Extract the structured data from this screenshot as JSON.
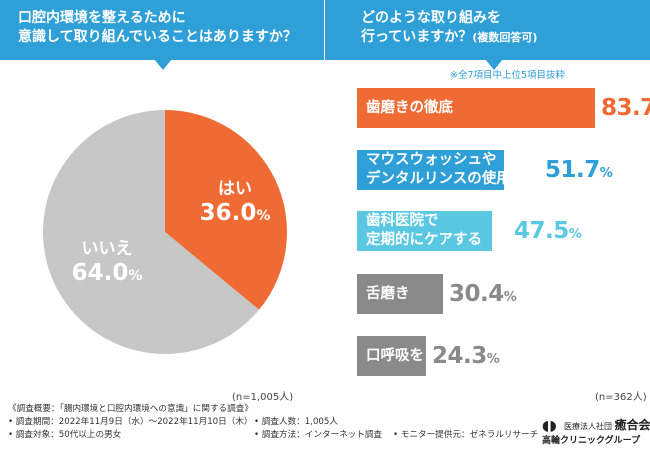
{
  "left_panel": {
    "question_line1": "口腔内環境を整えるために",
    "question_line2": "意識して取り組んでいることはありますか？",
    "n_label": "(n=1,005人)"
  },
  "right_panel": {
    "question_line1": "どのような取り組みを",
    "question_line2": "行っていますか？",
    "question_note": "(複数回答可)",
    "top_note": "※全7項目中上位5項目抜粋",
    "n_label": "(n=362人)"
  },
  "colors": {
    "banner": "#2f9fd8",
    "orange": "#f06b34",
    "blue": "#2f9fd8",
    "light_blue": "#5bc8e3",
    "gray": "#8a8a8a",
    "pie_gray": "#c7c7c7"
  },
  "chart_data": [
    {
      "type": "pie",
      "title": "口腔内環境を整えるために意識して取り組んでいることはありますか？",
      "slices": [
        {
          "label": "はい",
          "value": 36.0,
          "value_text": "36.0",
          "color": "#f06b34"
        },
        {
          "label": "いいえ",
          "value": 64.0,
          "value_text": "64.0",
          "color": "#c7c7c7"
        }
      ],
      "unit": "%"
    },
    {
      "type": "bar",
      "orientation": "horizontal",
      "title": "どのような取り組みを行っていますか？(複数回答可)",
      "categories": [
        "歯磨きの徹底",
        "マウスウォッシュやデンタルリンスの使用",
        "歯科医院で定期的にケアする",
        "舌磨き",
        "口呼吸をしない"
      ],
      "category_lines": [
        [
          "歯磨きの徹底"
        ],
        [
          "マウスウォッシュや",
          "デンタルリンスの使用"
        ],
        [
          "歯科医院で",
          "定期的にケアする"
        ],
        [
          "舌磨き"
        ],
        [
          "口呼吸をしない"
        ]
      ],
      "values": [
        83.7,
        51.7,
        47.5,
        30.4,
        24.3
      ],
      "value_texts": [
        "83.7",
        "51.7",
        "47.5",
        "30.4",
        "24.3"
      ],
      "colors": [
        "#f06b34",
        "#2f9fd8",
        "#5bc8e3",
        "#8a8a8a",
        "#8a8a8a"
      ],
      "unit": "%",
      "xlim": [
        0,
        100
      ]
    }
  ],
  "footer": {
    "title": "《調査概要：「腸内環境と口腔内環境への意識」に関する調査》",
    "period": "• 調査期間：2022年11月9日（水）～2022年11月10日（木）",
    "target": "• 調査対象：50代以上の男女",
    "respondents": "• 調査人数：1,005人",
    "method": "• 調査方法：インターネット調査",
    "provider": "• モニター提供元：ゼネラルリサーチ"
  },
  "logo": {
    "org_prefix": "医療法人社団",
    "org_name": "癒合会",
    "clinic_name": "高輪クリニックグループ"
  }
}
